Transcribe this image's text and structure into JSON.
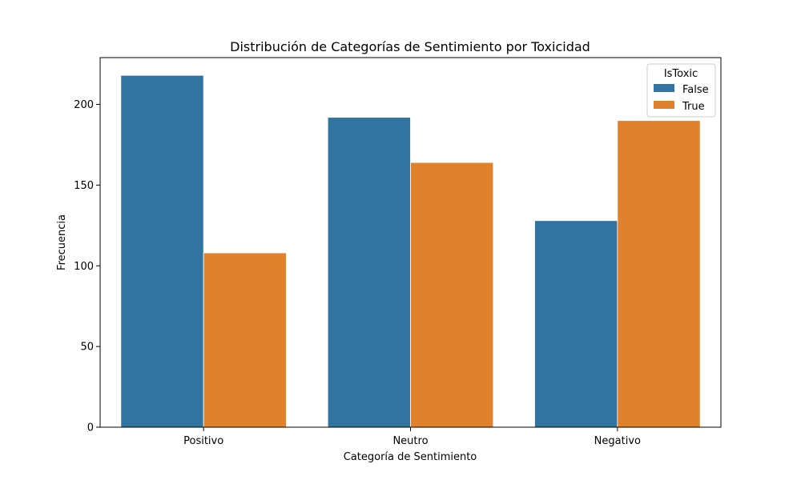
{
  "chart_data": {
    "type": "bar",
    "title": "Distribución de Categorías de Sentimiento por Toxicidad",
    "xlabel": "Categoría de Sentimiento",
    "ylabel": "Frecuencia",
    "categories": [
      "Positivo",
      "Neutro",
      "Negativo"
    ],
    "series": [
      {
        "name": "False",
        "color": "#3274a1",
        "values": [
          218,
          192,
          128
        ]
      },
      {
        "name": "True",
        "color": "#e1812c",
        "values": [
          108,
          164,
          190
        ]
      }
    ],
    "ylim": [
      0,
      229
    ],
    "yticks": [
      0,
      50,
      100,
      150,
      200
    ],
    "grid": false,
    "legend": {
      "title": "IsToxic",
      "position": "top-right"
    }
  }
}
